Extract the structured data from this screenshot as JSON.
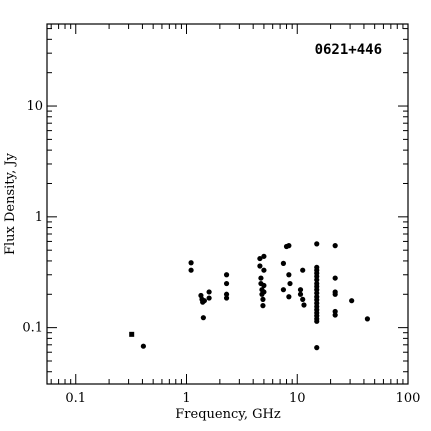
{
  "chart_data": {
    "type": "scatter",
    "title": "0621+446",
    "xlabel": "Frequency, GHz",
    "ylabel": "Flux Density, Jy",
    "x_scale": "log",
    "y_scale": "log",
    "xlim": [
      0.055,
      100
    ],
    "ylim": [
      0.031,
      55
    ],
    "x_ticks": [
      {
        "value": 0.1,
        "label": "0.1"
      },
      {
        "value": 1,
        "label": "1"
      },
      {
        "value": 10,
        "label": "10"
      },
      {
        "value": 100,
        "label": "100"
      }
    ],
    "y_ticks": [
      {
        "value": 0.1,
        "label": "0.1"
      },
      {
        "value": 1,
        "label": "1"
      },
      {
        "value": 10,
        "label": "10"
      }
    ],
    "grid": false,
    "series": [
      {
        "marker": "square",
        "points": [
          {
            "x": 0.32,
            "y": 0.087
          }
        ]
      },
      {
        "marker": "circle",
        "points": [
          {
            "x": 0.408,
            "y": 0.068
          },
          {
            "x": 1.1,
            "y": 0.385
          },
          {
            "x": 1.1,
            "y": 0.33
          },
          {
            "x": 1.35,
            "y": 0.195
          },
          {
            "x": 1.38,
            "y": 0.18
          },
          {
            "x": 1.4,
            "y": 0.17
          },
          {
            "x": 1.42,
            "y": 0.123
          },
          {
            "x": 1.45,
            "y": 0.175
          },
          {
            "x": 1.6,
            "y": 0.21
          },
          {
            "x": 1.6,
            "y": 0.185
          },
          {
            "x": 2.3,
            "y": 0.3
          },
          {
            "x": 2.3,
            "y": 0.25
          },
          {
            "x": 2.3,
            "y": 0.2
          },
          {
            "x": 2.3,
            "y": 0.185
          },
          {
            "x": 4.6,
            "y": 0.42
          },
          {
            "x": 4.6,
            "y": 0.36
          },
          {
            "x": 4.7,
            "y": 0.28
          },
          {
            "x": 4.7,
            "y": 0.25
          },
          {
            "x": 4.8,
            "y": 0.22
          },
          {
            "x": 4.8,
            "y": 0.2
          },
          {
            "x": 4.9,
            "y": 0.18
          },
          {
            "x": 4.9,
            "y": 0.158
          },
          {
            "x": 5.0,
            "y": 0.44
          },
          {
            "x": 5.0,
            "y": 0.33
          },
          {
            "x": 5.0,
            "y": 0.24
          },
          {
            "x": 5.0,
            "y": 0.21
          },
          {
            "x": 7.5,
            "y": 0.38
          },
          {
            "x": 7.5,
            "y": 0.22
          },
          {
            "x": 8.0,
            "y": 0.54
          },
          {
            "x": 8.4,
            "y": 0.55
          },
          {
            "x": 8.4,
            "y": 0.3
          },
          {
            "x": 8.4,
            "y": 0.19
          },
          {
            "x": 8.6,
            "y": 0.25
          },
          {
            "x": 10.7,
            "y": 0.22
          },
          {
            "x": 10.7,
            "y": 0.2
          },
          {
            "x": 11.2,
            "y": 0.33
          },
          {
            "x": 11.2,
            "y": 0.18
          },
          {
            "x": 11.5,
            "y": 0.16
          },
          {
            "x": 15,
            "y": 0.57
          },
          {
            "x": 15,
            "y": 0.35
          },
          {
            "x": 15,
            "y": 0.33
          },
          {
            "x": 15,
            "y": 0.31
          },
          {
            "x": 15,
            "y": 0.29
          },
          {
            "x": 15,
            "y": 0.27
          },
          {
            "x": 15,
            "y": 0.25
          },
          {
            "x": 15,
            "y": 0.235
          },
          {
            "x": 15,
            "y": 0.22
          },
          {
            "x": 15,
            "y": 0.205
          },
          {
            "x": 15,
            "y": 0.19
          },
          {
            "x": 15,
            "y": 0.178
          },
          {
            "x": 15,
            "y": 0.166
          },
          {
            "x": 15,
            "y": 0.155
          },
          {
            "x": 15,
            "y": 0.145
          },
          {
            "x": 15,
            "y": 0.136
          },
          {
            "x": 15,
            "y": 0.128
          },
          {
            "x": 15,
            "y": 0.12
          },
          {
            "x": 15,
            "y": 0.114
          },
          {
            "x": 15,
            "y": 0.066
          },
          {
            "x": 22,
            "y": 0.55
          },
          {
            "x": 22,
            "y": 0.28
          },
          {
            "x": 22,
            "y": 0.21
          },
          {
            "x": 22,
            "y": 0.2
          },
          {
            "x": 22,
            "y": 0.14
          },
          {
            "x": 22,
            "y": 0.13
          },
          {
            "x": 31,
            "y": 0.175
          },
          {
            "x": 43,
            "y": 0.12
          }
        ]
      }
    ]
  }
}
